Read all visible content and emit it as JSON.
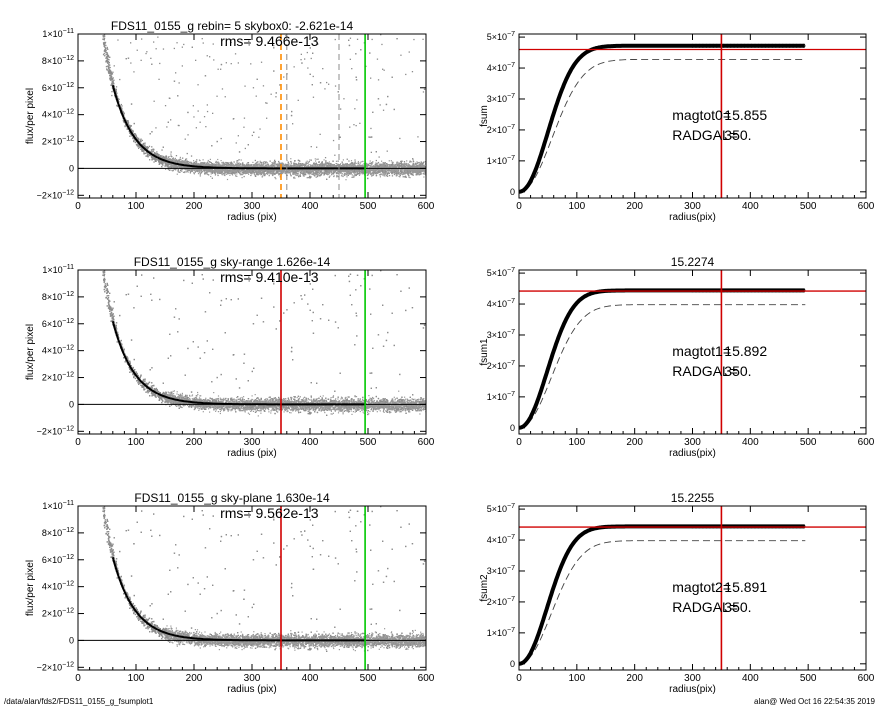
{
  "footer": {
    "path": "/data/alan/fds2/FDS11_0155_g_fsumplot1",
    "stamp": "alan@  Wed Oct 16 22:54:35 2019"
  },
  "colors": {
    "red": "#d00000",
    "green": "#00c800",
    "orange": "#ff8c00",
    "gray": "#8c8c8c",
    "dash": "#444444"
  },
  "chart_data": [
    {
      "type": "scatter",
      "title": "FDS11_0155_g rebin= 5    skybox0: -2.621e-14",
      "annotation": "rms= 9.466e-13",
      "xlabel": "radius (pix)",
      "ylabel": "flux/per pixel",
      "xlim": [
        0,
        600
      ],
      "ylim": [
        -2.2e-12,
        1e-11
      ],
      "xticks": [
        "0",
        "100",
        "200",
        "300",
        "400",
        "500",
        "600"
      ],
      "yticks": [
        {
          "v": -2e-12,
          "m": "−2×10",
          "e": "−12"
        },
        {
          "v": 0,
          "m": "0",
          "e": ""
        },
        {
          "v": 2e-12,
          "m": "2×10",
          "e": "−12"
        },
        {
          "v": 4e-12,
          "m": "4×10",
          "e": "−12"
        },
        {
          "v": 6e-12,
          "m": "6×10",
          "e": "−12"
        },
        {
          "v": 8e-12,
          "m": "8×10",
          "e": "−12"
        },
        {
          "v": 1e-11,
          "m": "1×10",
          "e": "−11"
        }
      ],
      "profile": {
        "amplitude": 3e-11,
        "scale": 38,
        "rmin": 60,
        "rmax": 495
      },
      "vlines": [
        {
          "x": 350,
          "color": "orange",
          "dash": true
        },
        {
          "x": 360,
          "color": "gray",
          "dash": true
        },
        {
          "x": 450,
          "color": "gray",
          "dash": true
        },
        {
          "x": 495,
          "color": "green",
          "dash": false
        }
      ]
    },
    {
      "type": "line",
      "title": "",
      "xlabel": "radius(pix)",
      "ylabel": "fsum",
      "xlim": [
        0,
        600
      ],
      "ylim": [
        -2e-08,
        5.1e-07
      ],
      "xticks": [
        "0",
        "100",
        "200",
        "300",
        "400",
        "500",
        "600"
      ],
      "yticks": [
        {
          "v": 0,
          "m": "0",
          "e": ""
        },
        {
          "v": 1e-07,
          "m": "1×10",
          "e": "−7"
        },
        {
          "v": 2e-07,
          "m": "2×10",
          "e": "−7"
        },
        {
          "v": 3e-07,
          "m": "3×10",
          "e": "−7"
        },
        {
          "v": 4e-07,
          "m": "4×10",
          "e": "−7"
        },
        {
          "v": 5e-07,
          "m": "5×10",
          "e": "−7"
        }
      ],
      "curve": {
        "asymptote": 4.72e-07,
        "scale": 68,
        "power": 2.1,
        "rmax": 495
      },
      "dashed_curve": {
        "asymptote": 4.28e-07,
        "scale": 78,
        "power": 2.1,
        "rmax": 495
      },
      "hline": 4.6e-07,
      "vline": 350,
      "labels": [
        {
          "key": "magtot0=",
          "value": "15.855"
        },
        {
          "key": "RADGAL=",
          "value": "350."
        }
      ]
    },
    {
      "type": "scatter",
      "title": "FDS11_0155_g sky-range  1.626e-14",
      "annotation": "rms= 9.410e-13",
      "xlabel": "radius (pix)",
      "ylabel": "flux/per pixel",
      "xlim": [
        0,
        600
      ],
      "ylim": [
        -2.2e-12,
        1e-11
      ],
      "xticks": [
        "0",
        "100",
        "200",
        "300",
        "400",
        "500",
        "600"
      ],
      "yticks": [
        {
          "v": -2e-12,
          "m": "−2×10",
          "e": "−12"
        },
        {
          "v": 0,
          "m": "0",
          "e": ""
        },
        {
          "v": 2e-12,
          "m": "2×10",
          "e": "−12"
        },
        {
          "v": 4e-12,
          "m": "4×10",
          "e": "−12"
        },
        {
          "v": 6e-12,
          "m": "6×10",
          "e": "−12"
        },
        {
          "v": 8e-12,
          "m": "8×10",
          "e": "−12"
        },
        {
          "v": 1e-11,
          "m": "1×10",
          "e": "−11"
        }
      ],
      "profile": {
        "amplitude": 3e-11,
        "scale": 38,
        "rmin": 60,
        "rmax": 495
      },
      "vlines": [
        {
          "x": 350,
          "color": "red",
          "dash": false
        },
        {
          "x": 495,
          "color": "green",
          "dash": false
        }
      ]
    },
    {
      "type": "line",
      "title": "15.2274",
      "xlabel": "radius(pix)",
      "ylabel": "fsum1",
      "xlim": [
        0,
        600
      ],
      "ylim": [
        -2e-08,
        5.1e-07
      ],
      "xticks": [
        "0",
        "100",
        "200",
        "300",
        "400",
        "500",
        "600"
      ],
      "yticks": [
        {
          "v": 0,
          "m": "0",
          "e": ""
        },
        {
          "v": 1e-07,
          "m": "1×10",
          "e": "−7"
        },
        {
          "v": 2e-07,
          "m": "2×10",
          "e": "−7"
        },
        {
          "v": 3e-07,
          "m": "3×10",
          "e": "−7"
        },
        {
          "v": 4e-07,
          "m": "4×10",
          "e": "−7"
        },
        {
          "v": 5e-07,
          "m": "5×10",
          "e": "−7"
        }
      ],
      "curve": {
        "asymptote": 4.44e-07,
        "scale": 66,
        "power": 2.1,
        "rmax": 495
      },
      "dashed_curve": {
        "asymptote": 3.98e-07,
        "scale": 76,
        "power": 2.1,
        "rmax": 495
      },
      "hline": 4.42e-07,
      "vline": 350,
      "labels": [
        {
          "key": "magtot1=",
          "value": "15.892"
        },
        {
          "key": "RADGAL=",
          "value": "350."
        }
      ]
    },
    {
      "type": "scatter",
      "title": "FDS11_0155_g sky-plane  1.630e-14",
      "annotation": "rms= 9.562e-13",
      "xlabel": "radius (pix)",
      "ylabel": "flux/per pixel",
      "xlim": [
        0,
        600
      ],
      "ylim": [
        -2.2e-12,
        1e-11
      ],
      "xticks": [
        "0",
        "100",
        "200",
        "300",
        "400",
        "500",
        "600"
      ],
      "yticks": [
        {
          "v": -2e-12,
          "m": "−2×10",
          "e": "−12"
        },
        {
          "v": 0,
          "m": "0",
          "e": ""
        },
        {
          "v": 2e-12,
          "m": "2×10",
          "e": "−12"
        },
        {
          "v": 4e-12,
          "m": "4×10",
          "e": "−12"
        },
        {
          "v": 6e-12,
          "m": "6×10",
          "e": "−12"
        },
        {
          "v": 8e-12,
          "m": "8×10",
          "e": "−12"
        },
        {
          "v": 1e-11,
          "m": "1×10",
          "e": "−11"
        }
      ],
      "profile": {
        "amplitude": 3e-11,
        "scale": 38,
        "rmin": 60,
        "rmax": 495
      },
      "vlines": [
        {
          "x": 350,
          "color": "red",
          "dash": false
        },
        {
          "x": 495,
          "color": "green",
          "dash": false
        }
      ]
    },
    {
      "type": "line",
      "title": "15.2255",
      "xlabel": "radius(pix)",
      "ylabel": "fsum2",
      "xlim": [
        0,
        600
      ],
      "ylim": [
        -2e-08,
        5.1e-07
      ],
      "xticks": [
        "0",
        "100",
        "200",
        "300",
        "400",
        "500",
        "600"
      ],
      "yticks": [
        {
          "v": 0,
          "m": "0",
          "e": ""
        },
        {
          "v": 1e-07,
          "m": "1×10",
          "e": "−7"
        },
        {
          "v": 2e-07,
          "m": "2×10",
          "e": "−7"
        },
        {
          "v": 3e-07,
          "m": "3×10",
          "e": "−7"
        },
        {
          "v": 4e-07,
          "m": "4×10",
          "e": "−7"
        },
        {
          "v": 5e-07,
          "m": "5×10",
          "e": "−7"
        }
      ],
      "curve": {
        "asymptote": 4.44e-07,
        "scale": 66,
        "power": 2.1,
        "rmax": 495
      },
      "dashed_curve": {
        "asymptote": 3.98e-07,
        "scale": 76,
        "power": 2.1,
        "rmax": 495
      },
      "hline": 4.42e-07,
      "vline": 350,
      "labels": [
        {
          "key": "magtot2=",
          "value": "15.891"
        },
        {
          "key": "RADGAL=",
          "value": "350."
        }
      ]
    }
  ]
}
